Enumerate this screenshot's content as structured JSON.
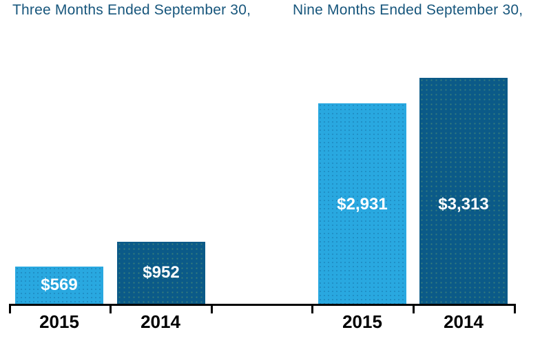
{
  "chart_data": {
    "type": "bar",
    "title": "",
    "background": "#FFFFFF",
    "grid": false,
    "legend": false,
    "groups": [
      {
        "title": "Three Months Ended September 30,",
        "categories": [
          "2015",
          "2014"
        ],
        "values": [
          569,
          952
        ],
        "value_labels": [
          "$569",
          "$952"
        ],
        "ylim": [
          0,
          1000
        ]
      },
      {
        "title": "Nine Months Ended September 30,",
        "categories": [
          "2015",
          "2014"
        ],
        "values": [
          2931,
          3313
        ],
        "value_labels": [
          "$2,931",
          "$3,313"
        ],
        "ylim": [
          0,
          3500
        ]
      }
    ],
    "colors": {
      "series_2015": "#29A8E0",
      "series_2014": "#0B5A88",
      "title_text": "#17567C",
      "value_label_text": "#FFFFFF",
      "category_label_text": "#000000",
      "axis": "#000000"
    }
  }
}
